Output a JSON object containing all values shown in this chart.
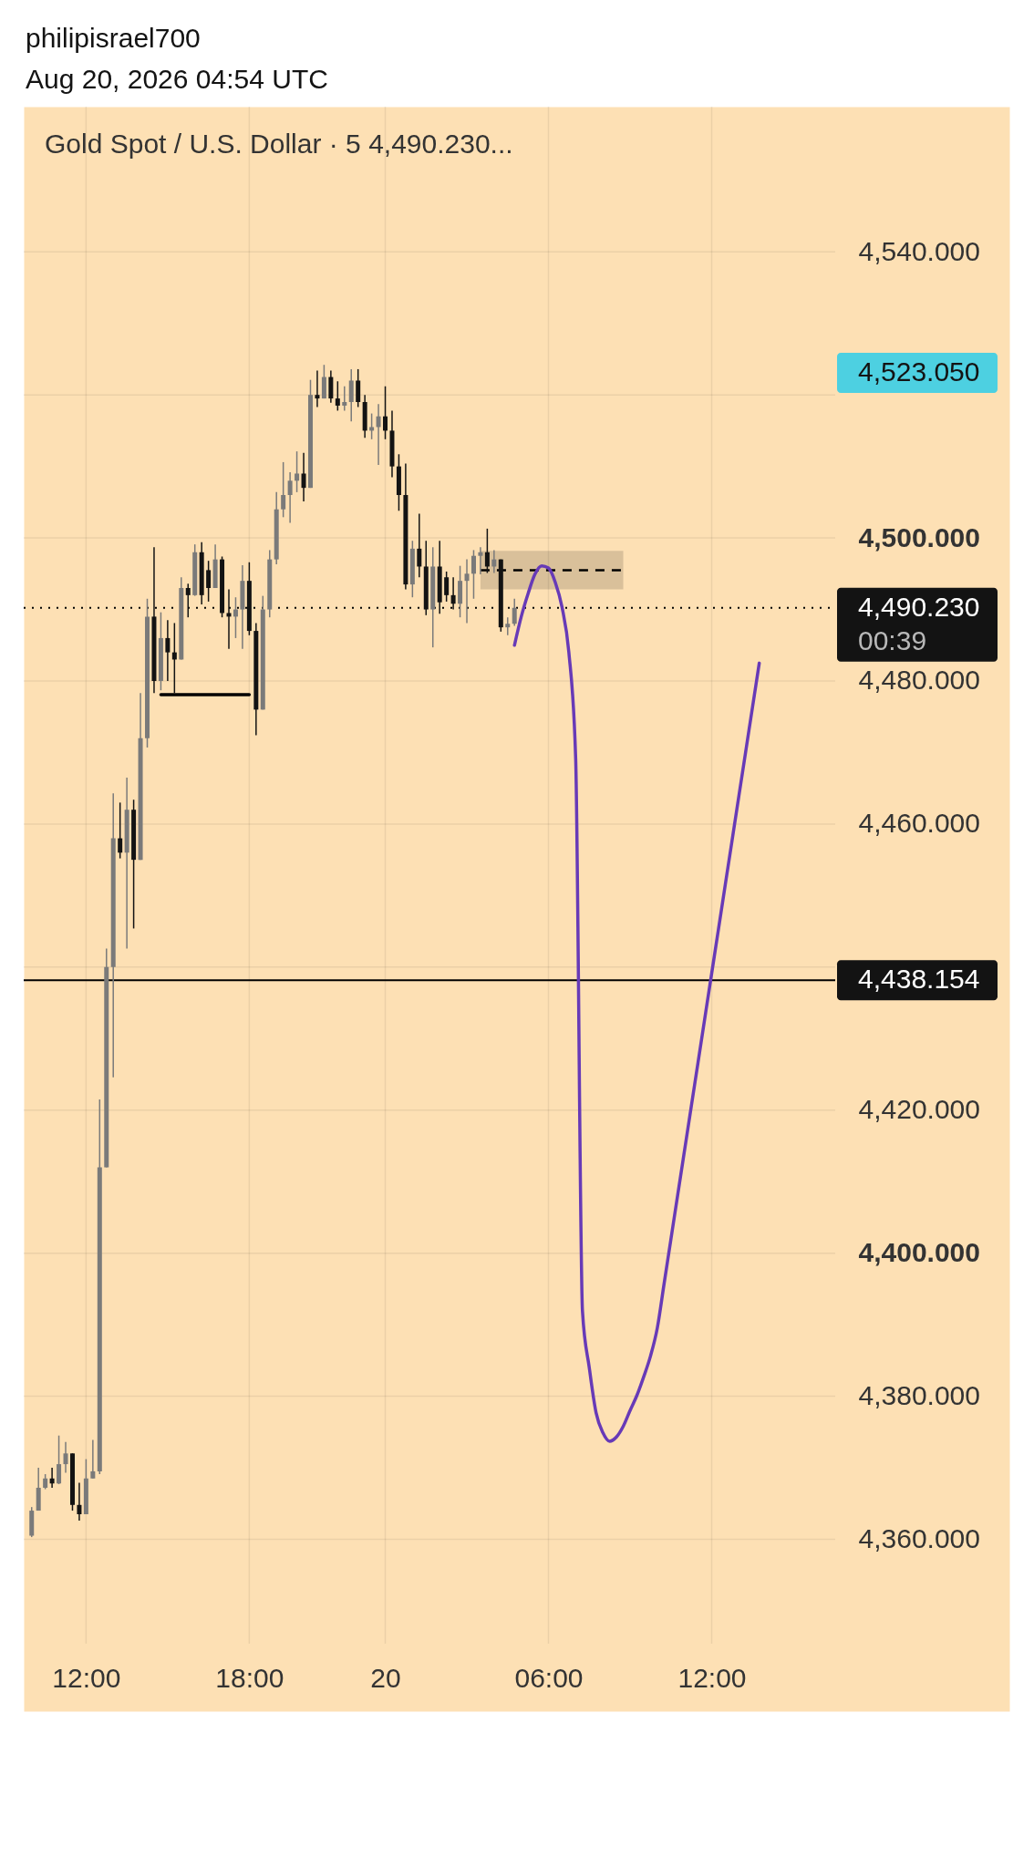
{
  "chart_data": {
    "type": "candlestick",
    "title": "Gold Spot / U.S. Dollar · 5  4,490.230...",
    "annotations": [
      "philipisrael700",
      "Aug 20, 2026 04:54 UTC",
      "4,523.050"
    ],
    "categories": [
      null,
      null,
      null,
      null,
      null,
      null,
      null,
      null,
      "12:00",
      null,
      null,
      null,
      null,
      null,
      null,
      null,
      null,
      null,
      null,
      null,
      null,
      null,
      null,
      null,
      null,
      null,
      null,
      null,
      null,
      null,
      null,
      null,
      "18:00",
      null,
      null,
      null,
      null,
      null,
      null,
      null,
      null,
      null,
      null,
      null,
      null,
      null,
      null,
      null,
      null,
      null,
      null,
      null,
      "20",
      null,
      null,
      null,
      null,
      null,
      null,
      null,
      null,
      null,
      null,
      null,
      null,
      null,
      null,
      null,
      null,
      null,
      null,
      null,
      null,
      null,
      null,
      null,
      "06:00",
      null,
      null,
      null,
      null,
      null,
      null,
      null,
      null,
      null,
      null,
      null,
      null,
      null,
      null,
      null,
      null,
      null,
      null,
      null,
      null,
      null,
      null,
      null,
      "12:00",
      null,
      null,
      null,
      null,
      null,
      null,
      null,
      null,
      null,
      null,
      null,
      null,
      null,
      null,
      null,
      null,
      null
    ],
    "ohlc": [
      [
        4360.5,
        4364.5,
        4360.3,
        4364.0
      ],
      [
        4364.0,
        4370.0,
        4364.0,
        4367.2
      ],
      [
        4367.2,
        4369.1,
        4367.0,
        4368.5
      ],
      [
        4368.5,
        4370.0,
        4367.2,
        4367.8
      ],
      [
        4367.8,
        4374.5,
        4367.7,
        4370.5
      ],
      [
        4370.5,
        4373.6,
        4369.3,
        4372.0
      ],
      [
        4372.0,
        4372.0,
        4364.0,
        4364.8
      ],
      [
        4364.8,
        4367.9,
        4362.6,
        4363.5
      ],
      [
        4363.5,
        4371.2,
        4363.5,
        4368.5
      ],
      [
        4368.5,
        4373.9,
        4368.5,
        4369.5
      ],
      [
        4369.5,
        4421.5,
        4369.1,
        4412.0
      ],
      [
        4412.0,
        4442.6,
        4412.0,
        4440.0
      ],
      [
        4440.0,
        4464.3,
        4424.6,
        4458.0
      ],
      [
        4458.0,
        4463.0,
        4455.2,
        4456.0
      ],
      [
        4456.0,
        4466.5,
        4442.6,
        4462.0
      ],
      [
        4462.0,
        4463.4,
        4445.4,
        4455.0
      ],
      [
        4455.0,
        4478.3,
        4455.0,
        4472.0
      ],
      [
        4472.0,
        4491.5,
        4470.7,
        4489.0
      ],
      [
        4489.0,
        4498.7,
        4478.3,
        4480.0
      ],
      [
        4480.0,
        4489.6,
        4478.7,
        4486.0
      ],
      [
        4486.0,
        4488.5,
        4480.0,
        4484.0
      ],
      [
        4484.0,
        4488.1,
        4478.3,
        4483.0
      ],
      [
        4483.0,
        4494.5,
        4483.0,
        4493.0
      ],
      [
        4493.0,
        4493.6,
        4488.9,
        4492.0
      ],
      [
        4492.0,
        4499.1,
        4491.9,
        4498.0
      ],
      [
        4498.0,
        4499.4,
        4490.7,
        4492.0
      ],
      [
        4495.5,
        4496.8,
        4491.1,
        4493.0
      ],
      [
        4493.0,
        4499.1,
        4493.0,
        4497.0
      ],
      [
        4497.0,
        4497.4,
        4488.9,
        4489.5
      ],
      [
        4489.5,
        4492.8,
        4484.5,
        4489.0
      ],
      [
        4489.0,
        4491.7,
        4486.0,
        4490.0
      ],
      [
        4490.0,
        4496.2,
        4484.5,
        4494.0
      ],
      [
        4494.0,
        4496.6,
        4486.4,
        4487.0
      ],
      [
        4487.0,
        4488.1,
        4472.4,
        4476.0
      ],
      [
        4476.0,
        4491.9,
        4476.0,
        4490.0
      ],
      [
        4490.0,
        4498.3,
        4488.9,
        4497.0
      ],
      [
        4497.0,
        4506.4,
        4496.3,
        4504.0
      ],
      [
        4504.0,
        4510.6,
        4502.9,
        4506.0
      ],
      [
        4506.0,
        4509.2,
        4502.1,
        4508.0
      ],
      [
        4508.0,
        4512.1,
        4506.4,
        4509.0
      ],
      [
        4509.0,
        4511.9,
        4505.1,
        4507.0
      ],
      [
        4507.0,
        4522.1,
        4507.0,
        4520.0
      ],
      [
        4520.0,
        4523.4,
        4518.3,
        4519.5
      ],
      [
        4519.5,
        4524.2,
        4519.5,
        4522.5
      ],
      [
        4522.5,
        4523.4,
        4518.9,
        4519.5
      ],
      [
        4519.5,
        4521.9,
        4517.8,
        4518.5
      ],
      [
        4518.5,
        4521.2,
        4517.8,
        4519.0
      ],
      [
        4519.0,
        4523.6,
        4516.3,
        4522.0
      ],
      [
        4522.0,
        4523.6,
        4518.3,
        4519.0
      ],
      [
        4519.0,
        4520.0,
        4514.0,
        4515.0
      ],
      [
        4515.0,
        4517.4,
        4513.8,
        4515.5
      ],
      [
        4515.5,
        4518.7,
        4510.2,
        4517.0
      ],
      [
        4517.0,
        4521.2,
        4513.8,
        4515.0
      ],
      [
        4515.0,
        4517.8,
        4508.5,
        4510.0
      ],
      [
        4510.0,
        4511.7,
        4503.8,
        4506.0
      ],
      [
        4506.0,
        4510.4,
        4492.8,
        4493.5
      ],
      [
        4493.5,
        4499.6,
        4491.7,
        4498.5
      ],
      [
        4498.5,
        4503.4,
        4494.5,
        4496.0
      ],
      [
        4496.0,
        4499.6,
        4489.2,
        4490.0
      ],
      [
        4490.0,
        4498.7,
        4484.7,
        4496.0
      ],
      [
        4496.0,
        4499.6,
        4489.4,
        4491.0
      ],
      [
        4494.5,
        4495.3,
        4491.1,
        4492.0
      ],
      [
        4492.0,
        4494.5,
        4490.0,
        4490.8
      ],
      [
        4490.8,
        4496.1,
        4488.9,
        4494.0
      ],
      [
        4494.0,
        4497.0,
        4488.1,
        4495.0
      ],
      [
        4495.0,
        4498.3,
        4491.5,
        4497.5
      ],
      [
        4497.5,
        4498.7,
        4494.9,
        4498.0
      ],
      [
        4498.0,
        4501.3,
        4495.1,
        4496.0
      ],
      [
        4496.0,
        4498.3,
        4495.1,
        4497.0
      ],
      [
        4497.0,
        4497.0,
        4486.9,
        4487.5
      ],
      [
        4487.5,
        4488.9,
        4486.4,
        4488.0
      ],
      [
        4488.0,
        4491.5,
        4487.7,
        4490.23
      ],
      null,
      null,
      null,
      null,
      null,
      null,
      null,
      null,
      null,
      null,
      null,
      null,
      null,
      null,
      null,
      null,
      null,
      null,
      null,
      null,
      null,
      null,
      null,
      null,
      null,
      null,
      null,
      null,
      null,
      null,
      null,
      null,
      null,
      null,
      null,
      null,
      null,
      null,
      null,
      null,
      null,
      null,
      null,
      null,
      null,
      null
    ],
    "colors": [
      "#7a7a7a",
      "#7a7a7a",
      "#7a7a7a",
      "#131313",
      "#7a7a7a",
      "#7a7a7a",
      "#131313",
      "#131313",
      "#7a7a7a",
      "#7a7a7a",
      "#7a7a7a",
      "#7a7a7a",
      "#7a7a7a",
      "#131313",
      "#7a7a7a",
      "#131313",
      "#7a7a7a",
      "#7a7a7a",
      "#131313",
      "#7a7a7a",
      "#131313",
      "#131313",
      "#7a7a7a",
      "#131313",
      "#7a7a7a",
      "#131313",
      "#131313",
      "#7a7a7a",
      "#131313",
      "#131313",
      "#7a7a7a",
      "#7a7a7a",
      "#131313",
      "#131313",
      "#7a7a7a",
      "#7a7a7a",
      "#7a7a7a",
      "#7a7a7a",
      "#7a7a7a",
      "#7a7a7a",
      "#131313",
      "#7a7a7a",
      "#131313",
      "#7a7a7a",
      "#131313",
      "#131313",
      "#7a7a7a",
      "#7a7a7a",
      "#131313",
      "#131313",
      "#7a7a7a",
      "#7a7a7a",
      "#131313",
      "#131313",
      "#131313",
      "#131313",
      "#7a7a7a",
      "#131313",
      "#131313",
      "#7a7a7a",
      "#131313",
      "#131313",
      "#131313",
      "#7a7a7a",
      "#7a7a7a",
      "#7a7a7a",
      "#7a7a7a",
      "#131313",
      "#7a7a7a",
      "#131313",
      "#7a7a7a",
      "#7a7a7a",
      null,
      null,
      null,
      null,
      null,
      null,
      null,
      null,
      null,
      null,
      null,
      null,
      null,
      null,
      null,
      null,
      null,
      null,
      null,
      null,
      null,
      null,
      null,
      null,
      null,
      null,
      null,
      null,
      null,
      null,
      null,
      null,
      null,
      null,
      null,
      null,
      null,
      null,
      null,
      null,
      null,
      null,
      null,
      null,
      null,
      null
    ],
    "series": [
      {
        "type": "line",
        "color": "#000000",
        "values": [
          null,
          null,
          null,
          null,
          null,
          null,
          null,
          null,
          null,
          null,
          null,
          null,
          null,
          null,
          null,
          null,
          null,
          null,
          null,
          4478.1,
          4478.1,
          4478.1,
          4478.1,
          4478.1,
          4478.1,
          4478.1,
          4478.1,
          4478.1,
          4478.1,
          4478.1,
          4478.1,
          4478.1,
          4478.1,
          null,
          null,
          null,
          null,
          null,
          null,
          null,
          null,
          null,
          null,
          null,
          null,
          null,
          null,
          null,
          null,
          null,
          null,
          null,
          null,
          null,
          null,
          null,
          null,
          null,
          null,
          null,
          null,
          null,
          null,
          null,
          null,
          null,
          null,
          null,
          null,
          null,
          null,
          null,
          null,
          null,
          null,
          null,
          null,
          null,
          null,
          null,
          null,
          null,
          null,
          null,
          null,
          null,
          null,
          null,
          null,
          null,
          null,
          null,
          null,
          null,
          null,
          null,
          null,
          null,
          null,
          null,
          null,
          null,
          null,
          null,
          null,
          null,
          null,
          null,
          null,
          null,
          null,
          null,
          null,
          null,
          null,
          null,
          null,
          null
        ]
      },
      {
        "type": "line",
        "color": "#000000",
        "line_style": "dashed",
        "values": [
          null,
          null,
          null,
          null,
          null,
          null,
          null,
          null,
          null,
          null,
          null,
          null,
          null,
          null,
          null,
          null,
          null,
          null,
          null,
          null,
          null,
          null,
          null,
          null,
          null,
          null,
          null,
          null,
          null,
          null,
          null,
          null,
          null,
          null,
          null,
          null,
          null,
          null,
          null,
          null,
          null,
          null,
          null,
          null,
          null,
          null,
          null,
          null,
          null,
          null,
          null,
          null,
          null,
          null,
          null,
          null,
          null,
          null,
          null,
          null,
          null,
          null,
          null,
          null,
          null,
          null,
          4495.5,
          4495.5,
          4495.5,
          4495.5,
          4495.5,
          4495.5,
          4495.5,
          4495.5,
          4495.5,
          4495.5,
          4495.5,
          4495.5,
          4495.5,
          4495.5,
          4495.5,
          4495.5,
          4495.5,
          4495.5,
          4495.5,
          4495.5,
          4495.5,
          4495.5,
          null,
          null,
          null,
          null,
          null,
          null,
          null,
          null,
          null,
          null,
          null,
          null,
          null,
          null,
          null,
          null,
          null,
          null,
          null,
          null,
          null,
          null,
          null,
          null,
          null,
          null,
          null,
          null,
          null,
          null
        ],
        "lower": [
          null,
          null,
          null,
          null,
          null,
          null,
          null,
          null,
          null,
          null,
          null,
          null,
          null,
          null,
          null,
          null,
          null,
          null,
          null,
          null,
          null,
          null,
          null,
          null,
          null,
          null,
          null,
          null,
          null,
          null,
          null,
          null,
          null,
          null,
          null,
          null,
          null,
          null,
          null,
          null,
          null,
          null,
          null,
          null,
          null,
          null,
          null,
          null,
          null,
          null,
          null,
          null,
          null,
          null,
          null,
          null,
          null,
          null,
          null,
          null,
          null,
          null,
          null,
          null,
          null,
          null,
          4492.8,
          4492.8,
          4492.8,
          4492.8,
          4492.8,
          4492.8,
          4492.8,
          4492.8,
          4492.8,
          4492.8,
          4492.8,
          4492.8,
          4492.8,
          4492.8,
          4492.8,
          4492.8,
          4492.8,
          4492.8,
          4492.8,
          4492.8,
          4492.8,
          4492.8,
          null,
          null,
          null,
          null,
          null,
          null,
          null,
          null,
          null,
          null,
          null,
          null,
          null,
          null,
          null,
          null,
          null,
          null,
          null,
          null,
          null,
          null,
          null,
          null,
          null,
          null,
          null,
          null,
          null,
          null
        ],
        "upper": [
          null,
          null,
          null,
          null,
          null,
          null,
          null,
          null,
          null,
          null,
          null,
          null,
          null,
          null,
          null,
          null,
          null,
          null,
          null,
          null,
          null,
          null,
          null,
          null,
          null,
          null,
          null,
          null,
          null,
          null,
          null,
          null,
          null,
          null,
          null,
          null,
          null,
          null,
          null,
          null,
          null,
          null,
          null,
          null,
          null,
          null,
          null,
          null,
          null,
          null,
          null,
          null,
          null,
          null,
          null,
          null,
          null,
          null,
          null,
          null,
          null,
          null,
          null,
          null,
          null,
          null,
          4498.2,
          4498.2,
          4498.2,
          4498.2,
          4498.2,
          4498.2,
          4498.2,
          4498.2,
          4498.2,
          4498.2,
          4498.2,
          4498.2,
          4498.2,
          4498.2,
          4498.2,
          4498.2,
          4498.2,
          4498.2,
          4498.2,
          4498.2,
          4498.2,
          4498.2,
          null,
          null,
          null,
          null,
          null,
          null,
          null,
          null,
          null,
          null,
          null,
          null,
          null,
          null,
          null,
          null,
          null,
          null,
          null,
          null,
          null,
          null,
          null,
          null,
          null,
          null,
          null,
          null,
          null,
          null
        ]
      },
      {
        "type": "line",
        "color": "#673ab7",
        "values": [
          null,
          null,
          null,
          null,
          null,
          null,
          null,
          null,
          null,
          null,
          null,
          null,
          null,
          null,
          null,
          null,
          null,
          null,
          null,
          null,
          null,
          null,
          null,
          null,
          null,
          null,
          null,
          null,
          null,
          null,
          null,
          null,
          null,
          null,
          null,
          null,
          null,
          null,
          null,
          null,
          null,
          null,
          null,
          null,
          null,
          null,
          null,
          null,
          null,
          null,
          null,
          null,
          null,
          null,
          null,
          null,
          null,
          null,
          null,
          null,
          null,
          null,
          null,
          null,
          null,
          null,
          null,
          null,
          null,
          null,
          null,
          4485.0,
          4489.0,
          4492.2,
          4494.9,
          4496.1,
          4495.8,
          4493.8,
          4490.3,
          4484.0,
          4469.2,
          4391.9,
          4384.0,
          4377.7,
          4374.9,
          4373.7,
          4374.3,
          4375.8,
          4378.0,
          4380.1,
          4382.7,
          4385.6,
          4389.5,
          4395.7,
          4401.9,
          4408.1,
          4414.3,
          4420.5,
          4426.7,
          4432.9,
          4439.1,
          4445.3,
          4451.5,
          4457.7,
          4463.9,
          4470.1,
          4476.3,
          4482.5,
          null,
          null,
          null,
          null,
          null,
          null,
          null,
          null,
          null,
          null
        ]
      }
    ],
    "ylim": [
      4345.4,
      4560.3
    ],
    "yticks": [
      {
        "value": 4360,
        "label": "4,360.000"
      },
      {
        "value": 4380,
        "label": "4,380.000"
      },
      {
        "value": 4400,
        "label": "4,400.000"
      },
      {
        "value": 4420,
        "label": "4,420.000"
      },
      {
        "value": 4440,
        "label": null
      },
      {
        "value": 4460,
        "label": "4,460.000"
      },
      {
        "value": 4480,
        "label": "4,480.000"
      },
      {
        "value": 4500,
        "label": "4,500.000"
      },
      {
        "value": 4520,
        "label": null
      },
      {
        "value": 4540,
        "label": "4,540.000"
      }
    ],
    "ref_lines": [
      {
        "axis": "y",
        "value": 4490.23,
        "label": "4,490.230\n00:39",
        "color": "#000000",
        "line_style": "dotted"
      },
      {
        "axis": "y",
        "value": 4438.154,
        "label": "4,438.154",
        "color": "#000000",
        "line_style": "solid"
      }
    ],
    "grid": true
  }
}
